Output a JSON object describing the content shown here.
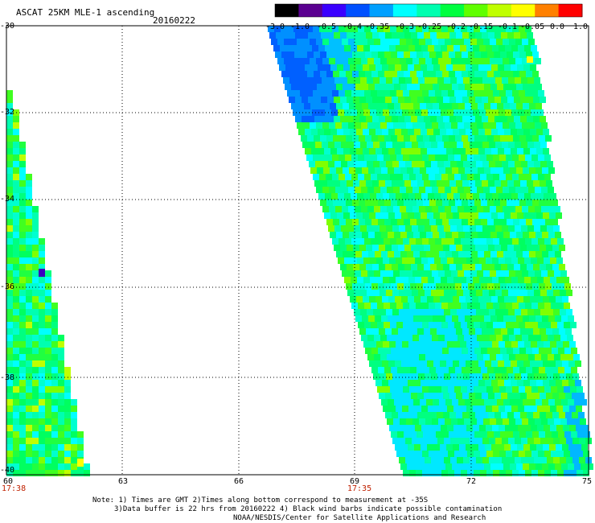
{
  "header": {
    "title": "ASCAT 25KM MLE-1 ascending",
    "date": "20160222"
  },
  "colorbar": {
    "labels": [
      "-3.0",
      "-1.0",
      "-0.5",
      "-0.4",
      "-0.35",
      "-0.3",
      "-0.25",
      "-0.2",
      "-0.15",
      "-0.1",
      "-0.05",
      "0.0",
      "1.0"
    ],
    "colors": [
      "#000000",
      "#5a0090",
      "#3a00ff",
      "#0050ff",
      "#00a0ff",
      "#00ffff",
      "#00ffb0",
      "#00ff40",
      "#60ff00",
      "#c0ff00",
      "#ffff00",
      "#ff8000",
      "#ff0000"
    ]
  },
  "axes": {
    "lat_labels": [
      "-30",
      "-32",
      "-34",
      "-36",
      "-38",
      "-40"
    ],
    "lon_labels": [
      "60",
      "63",
      "66",
      "69",
      "72",
      "75"
    ],
    "time_labels": [
      "17:38",
      "17:35"
    ]
  },
  "notes": {
    "line1": "Note: 1) Times are GMT 2)Times along bottom correspond to measurement at -35S",
    "line2": "3)Data buffer is 22 hrs from 20160222 4) Black wind barbs indicate possible contamination",
    "line3": "NOAA/NESDIS/Center for Satellite Applications and Research"
  }
}
